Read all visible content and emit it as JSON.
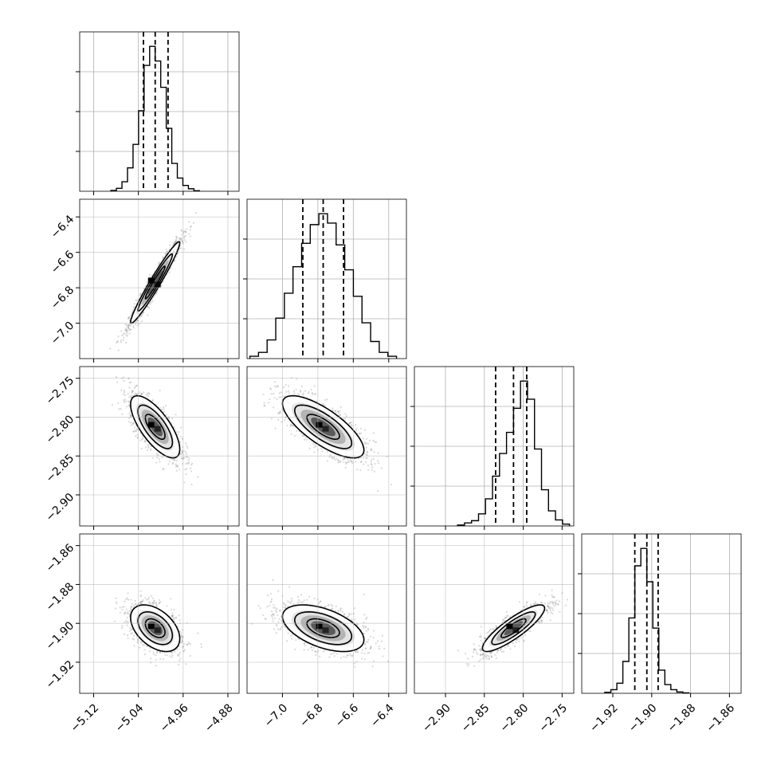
{
  "chart_data": {
    "type": "corner",
    "parameters": [
      {
        "range": [
          -5.145,
          -4.86
        ],
        "ticks": [
          -5.12,
          -5.04,
          -4.96,
          -4.88
        ],
        "tick_labels": [
          "−5.12",
          "−5.04",
          "−4.96",
          "−4.88"
        ],
        "quantiles": [
          -5.031,
          -5.01,
          -4.987
        ],
        "hist": [
          0.6,
          2,
          6.5,
          16,
          32,
          55,
          86,
          99,
          89,
          71,
          43,
          19,
          9,
          4,
          1.7,
          0.4
        ]
      },
      {
        "range": [
          -7.2,
          -6.3
        ],
        "ticks": [
          -7.0,
          -6.8,
          -6.6,
          -6.4
        ],
        "tick_labels": [
          "−7.0",
          "−6.8",
          "−6.6",
          "−6.4"
        ],
        "quantiles": [
          -6.885,
          -6.77,
          -6.655
        ],
        "hist": [
          1.5,
          4,
          12,
          26,
          42,
          59,
          74,
          86,
          93,
          87,
          73,
          57,
          40,
          23,
          11,
          4,
          1.5
        ]
      },
      {
        "range": [
          -2.94,
          -2.735
        ],
        "ticks": [
          -2.9,
          -2.85,
          -2.8,
          -2.75
        ],
        "tick_labels": [
          "−2.90",
          "−2.85",
          "−2.80",
          "−2.75"
        ],
        "quantiles": [
          -2.8355,
          -2.8125,
          -2.7955
        ],
        "hist": [
          0.6,
          2,
          3.5,
          8,
          18,
          33,
          48,
          62,
          78,
          96,
          84,
          51,
          24,
          10,
          4,
          1.2
        ]
      },
      {
        "range": [
          -1.936,
          -1.854
        ],
        "ticks": [
          -1.92,
          -1.9,
          -1.88,
          -1.86
        ],
        "tick_labels": [
          "−1.92",
          "−1.90",
          "−1.88",
          "−1.86"
        ],
        "quantiles": [
          -1.9087,
          -1.9025,
          -1.8967
        ],
        "hist": [
          0.7,
          2.5,
          7,
          22,
          52,
          88,
          100,
          77,
          45,
          16,
          6,
          2.5,
          0.9,
          0.3
        ]
      }
    ],
    "pairs": [
      {
        "x": 0,
        "y": 1,
        "corr": 0.97
      },
      {
        "x": 0,
        "y": 2,
        "corr": -0.72
      },
      {
        "x": 1,
        "y": 2,
        "corr": -0.75
      },
      {
        "x": 0,
        "y": 3,
        "corr": -0.45
      },
      {
        "x": 1,
        "y": 3,
        "corr": -0.5
      },
      {
        "x": 2,
        "y": 3,
        "corr": 0.86
      }
    ],
    "grid": true,
    "colors": {
      "line": "#000000",
      "grid": "#b0b0b0",
      "scatter": "#808080",
      "fill_dark": "#000000",
      "fill_mid": "#5a5a5a",
      "fill_light": "#b4b4b4",
      "fill_pale": "#e4e4e4"
    }
  }
}
